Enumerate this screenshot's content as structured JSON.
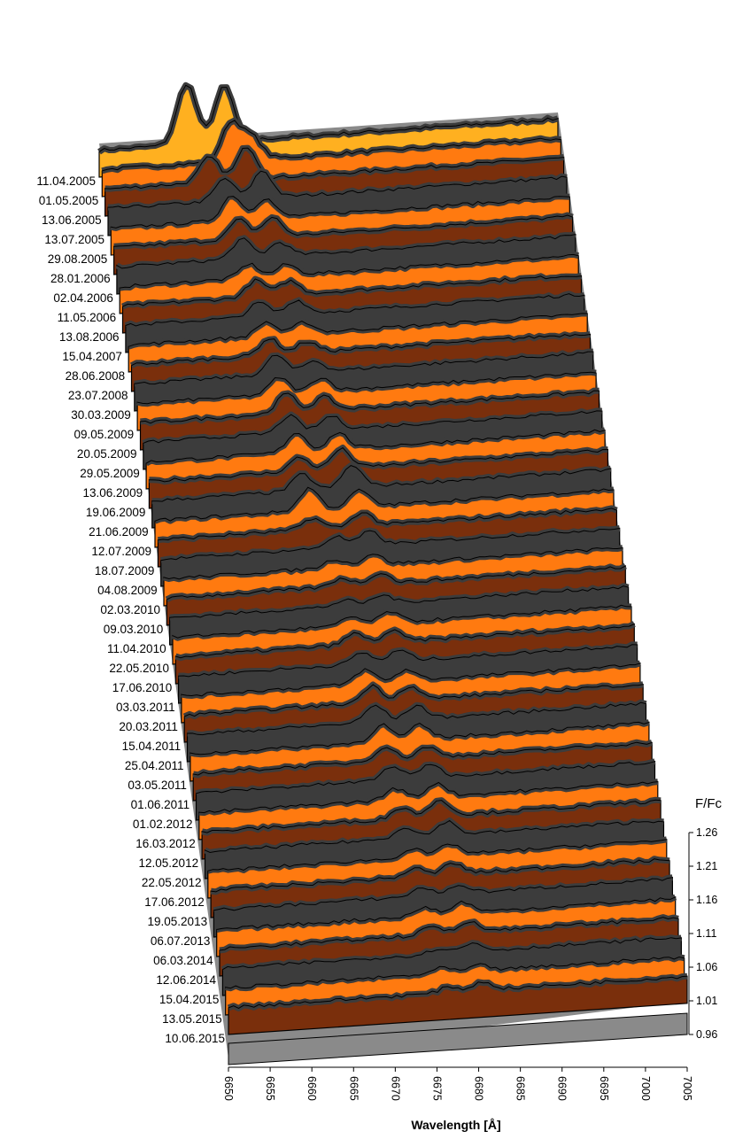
{
  "chart_data": {
    "type": "area",
    "chart_style": "3d-waterfall",
    "x_label": "Wavelength [Å]",
    "x_ticks": [
      "6650",
      "6655",
      "6660",
      "6665",
      "6670",
      "6675",
      "6680",
      "6685",
      "6690",
      "6695",
      "7000",
      "7005"
    ],
    "z_label": "F/Fc",
    "z_ticks": [
      "0.96",
      "1.01",
      "1.06",
      "1.11",
      "1.16",
      "1.21",
      "1.26"
    ],
    "z_range": [
      0.96,
      1.26
    ],
    "grid": false,
    "legend": "none",
    "colors": {
      "dark": "#3c3c3c",
      "orange": "#ff7a10",
      "rust": "#7a2f0c",
      "gold": "#ffb020",
      "back": "#8a8a8a",
      "outline": "#000000"
    },
    "series": [
      {
        "name": "11.04.2005",
        "peaks": [
          {
            "x": 6660.5,
            "h": 1.22
          },
          {
            "x": 6665.0,
            "h": 1.2
          }
        ]
      },
      {
        "name": "01.05.2005",
        "peaks": [
          {
            "x": 6665.5,
            "h": 1.14
          },
          {
            "x": 6668.0,
            "h": 1.08
          }
        ]
      },
      {
        "name": "13.06.2005",
        "peaks": [
          {
            "x": 6662.5,
            "h": 1.09
          },
          {
            "x": 6667.0,
            "h": 1.12
          }
        ]
      },
      {
        "name": "13.07.2005",
        "peaks": [
          {
            "x": 6664.0,
            "h": 1.08
          },
          {
            "x": 6668.5,
            "h": 1.1
          }
        ]
      },
      {
        "name": "29.08.2005",
        "peaks": [
          {
            "x": 6664.5,
            "h": 1.09
          },
          {
            "x": 6668.5,
            "h": 1.07
          }
        ]
      },
      {
        "name": "28.01.2006",
        "peaks": [
          {
            "x": 6665.0,
            "h": 1.07
          },
          {
            "x": 6669.0,
            "h": 1.07
          }
        ]
      },
      {
        "name": "02.04.2006",
        "peaks": [
          {
            "x": 6665.0,
            "h": 1.07
          },
          {
            "x": 6669.5,
            "h": 1.05
          }
        ]
      },
      {
        "name": "11.05.2006",
        "peaks": [
          {
            "x": 6665.5,
            "h": 1.05
          },
          {
            "x": 6670.0,
            "h": 1.04
          }
        ]
      },
      {
        "name": "13.08.2006",
        "peaks": [
          {
            "x": 6666.0,
            "h": 1.06
          },
          {
            "x": 6670.0,
            "h": 1.05
          }
        ]
      },
      {
        "name": "15.04.2007",
        "peaks": [
          {
            "x": 6666.0,
            "h": 1.05
          },
          {
            "x": 6670.5,
            "h": 1.05
          }
        ]
      },
      {
        "name": "28.06.2008",
        "peaks": [
          {
            "x": 6666.5,
            "h": 1.05
          },
          {
            "x": 6671.0,
            "h": 1.04
          }
        ]
      },
      {
        "name": "23.07.2008",
        "peaks": [
          {
            "x": 6666.5,
            "h": 1.06
          },
          {
            "x": 6671.0,
            "h": 1.04
          }
        ]
      },
      {
        "name": "30.03.2009",
        "peaks": [
          {
            "x": 6667.0,
            "h": 1.07
          },
          {
            "x": 6671.5,
            "h": 1.04
          }
        ]
      },
      {
        "name": "09.05.2009",
        "peaks": [
          {
            "x": 6667.0,
            "h": 1.06
          },
          {
            "x": 6672.0,
            "h": 1.05
          }
        ]
      },
      {
        "name": "20.05.2009",
        "peaks": [
          {
            "x": 6667.5,
            "h": 1.07
          },
          {
            "x": 6672.0,
            "h": 1.05
          }
        ]
      },
      {
        "name": "29.05.2009",
        "peaks": [
          {
            "x": 6667.5,
            "h": 1.06
          },
          {
            "x": 6672.5,
            "h": 1.05
          }
        ]
      },
      {
        "name": "13.06.2009",
        "peaks": [
          {
            "x": 6668.0,
            "h": 1.07
          },
          {
            "x": 6673.0,
            "h": 1.06
          }
        ]
      },
      {
        "name": "19.06.2009",
        "peaks": [
          {
            "x": 6668.0,
            "h": 1.05
          },
          {
            "x": 6673.0,
            "h": 1.07
          }
        ]
      },
      {
        "name": "21.06.2009",
        "peaks": [
          {
            "x": 6668.0,
            "h": 1.06
          },
          {
            "x": 6674.0,
            "h": 1.08
          }
        ]
      },
      {
        "name": "12.07.2009",
        "peaks": [
          {
            "x": 6668.5,
            "h": 1.08
          },
          {
            "x": 6674.5,
            "h": 1.06
          }
        ]
      },
      {
        "name": "18.07.2009",
        "peaks": [
          {
            "x": 6668.5,
            "h": 1.04
          },
          {
            "x": 6674.5,
            "h": 1.05
          }
        ]
      },
      {
        "name": "04.08.2009",
        "peaks": [
          {
            "x": 6671.0,
            "h": 1.04
          },
          {
            "x": 6675.0,
            "h": 1.05
          }
        ]
      },
      {
        "name": "02.03.2010",
        "peaks": [
          {
            "x": 6670.5,
            "h": 1.03
          },
          {
            "x": 6675.0,
            "h": 1.04
          }
        ]
      },
      {
        "name": "09.03.2010",
        "peaks": [
          {
            "x": 6671.0,
            "h": 1.03
          },
          {
            "x": 6675.5,
            "h": 1.04
          }
        ]
      },
      {
        "name": "11.04.2010",
        "peaks": [
          {
            "x": 6671.0,
            "h": 1.02
          },
          {
            "x": 6675.5,
            "h": 1.03
          }
        ]
      },
      {
        "name": "22.05.2010",
        "peaks": [
          {
            "x": 6671.5,
            "h": 1.03
          },
          {
            "x": 6676.0,
            "h": 1.04
          }
        ]
      },
      {
        "name": "17.06.2010",
        "peaks": [
          {
            "x": 6671.5,
            "h": 1.04
          },
          {
            "x": 6676.0,
            "h": 1.04
          }
        ]
      },
      {
        "name": "03.03.2011",
        "peaks": [
          {
            "x": 6672.0,
            "h": 1.04
          },
          {
            "x": 6676.5,
            "h": 1.04
          }
        ]
      },
      {
        "name": "20.03.2011",
        "peaks": [
          {
            "x": 6672.0,
            "h": 1.05
          },
          {
            "x": 6677.0,
            "h": 1.04
          }
        ]
      },
      {
        "name": "15.04.2011",
        "peaks": [
          {
            "x": 6672.5,
            "h": 1.06
          },
          {
            "x": 6677.0,
            "h": 1.05
          }
        ]
      },
      {
        "name": "25.04.2011",
        "peaks": [
          {
            "x": 6672.5,
            "h": 1.06
          },
          {
            "x": 6677.5,
            "h": 1.05
          }
        ]
      },
      {
        "name": "03.05.2011",
        "peaks": [
          {
            "x": 6673.0,
            "h": 1.06
          },
          {
            "x": 6677.5,
            "h": 1.05
          }
        ]
      },
      {
        "name": "01.06.2011",
        "peaks": [
          {
            "x": 6673.0,
            "h": 1.05
          },
          {
            "x": 6678.0,
            "h": 1.04
          }
        ]
      },
      {
        "name": "01.02.2012",
        "peaks": [
          {
            "x": 6673.5,
            "h": 1.05
          },
          {
            "x": 6678.0,
            "h": 1.05
          }
        ]
      },
      {
        "name": "16.03.2012",
        "peaks": [
          {
            "x": 6673.5,
            "h": 1.04
          },
          {
            "x": 6678.5,
            "h": 1.05
          }
        ]
      },
      {
        "name": "12.05.2012",
        "peaks": [
          {
            "x": 6674.0,
            "h": 1.04
          },
          {
            "x": 6678.5,
            "h": 1.06
          }
        ]
      },
      {
        "name": "22.05.2012",
        "peaks": [
          {
            "x": 6674.0,
            "h": 1.04
          },
          {
            "x": 6679.0,
            "h": 1.05
          }
        ]
      },
      {
        "name": "17.06.2012",
        "peaks": [
          {
            "x": 6674.5,
            "h": 1.03
          },
          {
            "x": 6679.0,
            "h": 1.04
          }
        ]
      },
      {
        "name": "19.05.2013",
        "peaks": [
          {
            "x": 6674.5,
            "h": 1.03
          },
          {
            "x": 6679.0,
            "h": 1.04
          }
        ]
      },
      {
        "name": "06.07.2013",
        "peaks": [
          {
            "x": 6675.0,
            "h": 1.03
          },
          {
            "x": 6679.5,
            "h": 1.03
          }
        ]
      },
      {
        "name": "06.03.2014",
        "peaks": [
          {
            "x": 6675.0,
            "h": 1.03
          },
          {
            "x": 6679.5,
            "h": 1.04
          }
        ]
      },
      {
        "name": "12.06.2014",
        "peaks": [
          {
            "x": 6675.5,
            "h": 1.03
          },
          {
            "x": 6680.0,
            "h": 1.04
          }
        ]
      },
      {
        "name": "15.04.2015",
        "peaks": [
          {
            "x": 6676.0,
            "h": 1.02
          },
          {
            "x": 6680.0,
            "h": 1.03
          }
        ]
      },
      {
        "name": "13.05.2015",
        "peaks": [
          {
            "x": 6676.0,
            "h": 1.02
          },
          {
            "x": 6680.5,
            "h": 1.02
          }
        ]
      },
      {
        "name": "10.06.2015",
        "peaks": [
          {
            "x": 6676.5,
            "h": 1.02
          },
          {
            "x": 6680.5,
            "h": 1.03
          }
        ]
      }
    ]
  }
}
